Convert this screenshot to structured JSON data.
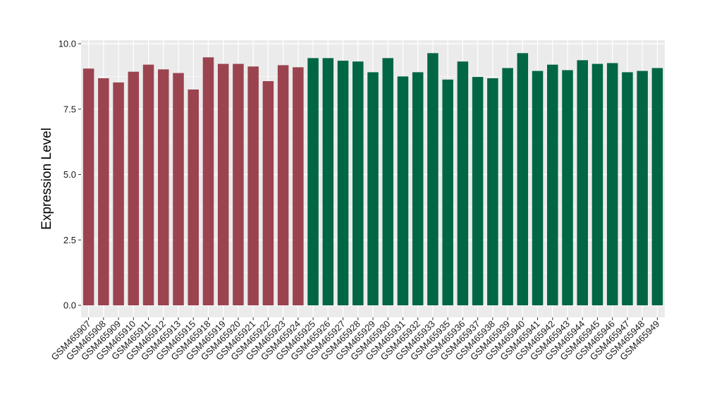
{
  "chart_data": {
    "type": "bar",
    "title": "",
    "xlabel": "",
    "ylabel": "Expression Level",
    "ylim": [
      0,
      10
    ],
    "yticks": [
      0.0,
      2.5,
      5.0,
      7.5,
      10.0
    ],
    "ytick_labels": [
      "0.0",
      "2.5",
      "5.0",
      "7.5",
      "10.0"
    ],
    "grid": true,
    "legend": "none",
    "background_color": "#ebebeb",
    "grid_color": "#ffffff",
    "series_colors": [
      "#9b4450",
      "#006644"
    ],
    "categories": [
      "GSM465907",
      "GSM465908",
      "GSM465909",
      "GSM465910",
      "GSM465911",
      "GSM465912",
      "GSM465913",
      "GSM465915",
      "GSM465918",
      "GSM465919",
      "GSM465920",
      "GSM465921",
      "GSM465922",
      "GSM465923",
      "GSM465924",
      "GSM465925",
      "GSM465926",
      "GSM465927",
      "GSM465928",
      "GSM465929",
      "GSM465930",
      "GSM465931",
      "GSM465932",
      "GSM465933",
      "GSM465935",
      "GSM465936",
      "GSM465937",
      "GSM465938",
      "GSM465939",
      "GSM465940",
      "GSM465941",
      "GSM465942",
      "GSM465943",
      "GSM465944",
      "GSM465945",
      "GSM465946",
      "GSM465947",
      "GSM465948",
      "GSM465949"
    ],
    "values": [
      9.05,
      8.68,
      8.52,
      8.93,
      9.2,
      9.02,
      8.88,
      8.25,
      9.48,
      9.23,
      9.23,
      9.13,
      8.57,
      9.18,
      9.1,
      9.45,
      9.45,
      9.35,
      9.32,
      8.91,
      9.45,
      8.75,
      8.91,
      9.64,
      8.63,
      9.32,
      8.73,
      8.68,
      9.07,
      9.64,
      8.96,
      9.2,
      8.99,
      9.37,
      9.23,
      9.26,
      8.91,
      8.96,
      9.07
    ],
    "group_of_bar": [
      0,
      0,
      0,
      0,
      0,
      0,
      0,
      0,
      0,
      0,
      0,
      0,
      0,
      0,
      0,
      1,
      1,
      1,
      1,
      1,
      1,
      1,
      1,
      1,
      1,
      1,
      1,
      1,
      1,
      1,
      1,
      1,
      1,
      1,
      1,
      1,
      1,
      1,
      1
    ]
  }
}
